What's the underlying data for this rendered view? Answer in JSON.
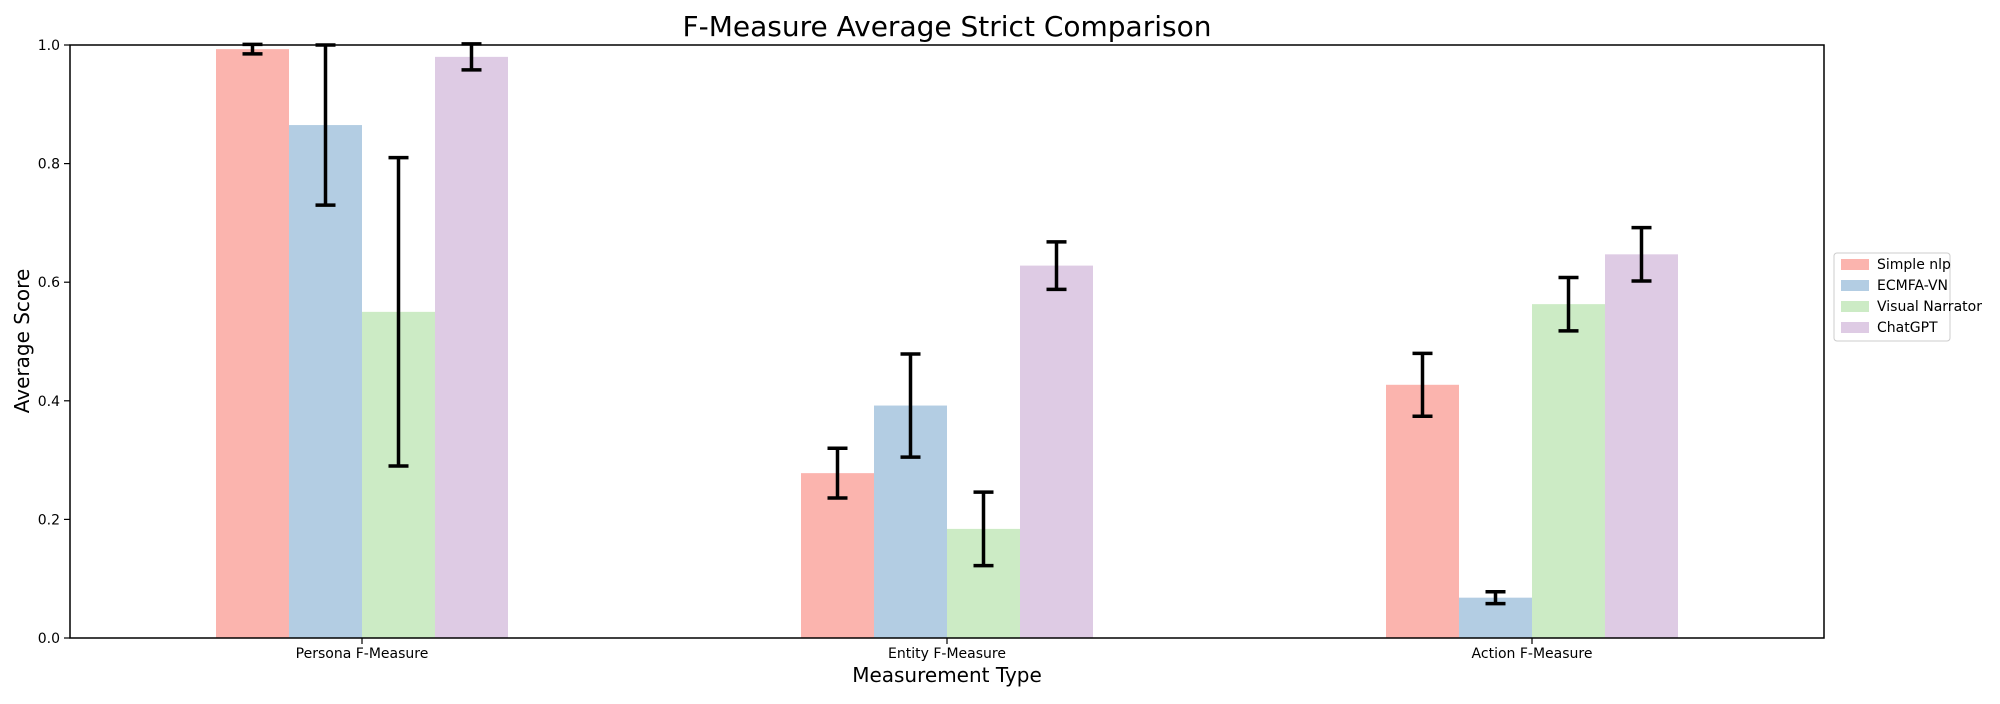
{
  "chart_data": {
    "type": "bar",
    "title": "F-Measure Average Strict Comparison",
    "xlabel": "Measurement Type",
    "ylabel": "Average Score",
    "categories": [
      "Persona F-Measure",
      "Entity F-Measure",
      "Action F-Measure"
    ],
    "ylim": [
      0,
      1.0
    ],
    "yticks": [
      "0.0",
      "0.2",
      "0.4",
      "0.6",
      "0.8",
      "1.0"
    ],
    "grid": false,
    "legend_position": "right, outside plot",
    "series": [
      {
        "name": "Simple nlp",
        "color": "#fbb4ae",
        "values": [
          0.993,
          0.278,
          0.427
        ],
        "errors": [
          0.008,
          0.042,
          0.053
        ]
      },
      {
        "name": "ECMFA-VN",
        "color": "#b3cde3",
        "values": [
          0.865,
          0.392,
          0.068
        ],
        "errors": [
          0.135,
          0.087,
          0.01
        ]
      },
      {
        "name": "Visual Narrator",
        "color": "#ccebc5",
        "values": [
          0.55,
          0.184,
          0.563
        ],
        "errors": [
          0.26,
          0.062,
          0.045
        ]
      },
      {
        "name": "ChatGPT",
        "color": "#decbe4",
        "values": [
          0.98,
          0.628,
          0.647
        ],
        "errors": [
          0.022,
          0.04,
          0.045
        ]
      }
    ]
  }
}
